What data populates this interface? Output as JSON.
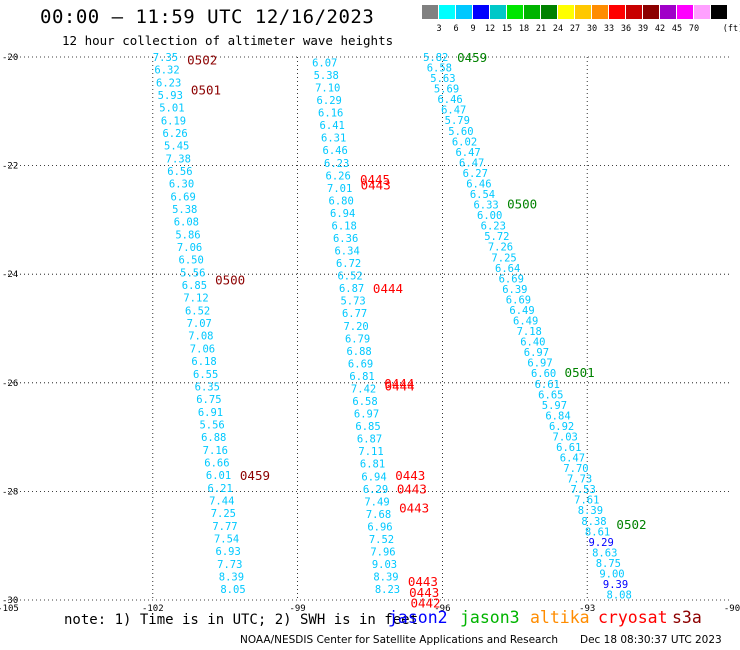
{
  "title": "00:00 – 11:59 UTC 12/16/2023",
  "subtitle": "12 hour collection of altimeter wave heights",
  "colorbar": {
    "unit": "(ft)",
    "steps": [
      {
        "label": "",
        "color": "#808080"
      },
      {
        "label": "3",
        "color": "#00ffff"
      },
      {
        "label": "6",
        "color": "#00c8ff"
      },
      {
        "label": "9",
        "color": "#0000ff"
      },
      {
        "label": "12",
        "color": "#00c8c8"
      },
      {
        "label": "15",
        "color": "#00e600"
      },
      {
        "label": "18",
        "color": "#00b400"
      },
      {
        "label": "21",
        "color": "#008200"
      },
      {
        "label": "24",
        "color": "#ffff00"
      },
      {
        "label": "27",
        "color": "#ffc800"
      },
      {
        "label": "30",
        "color": "#ff8c00"
      },
      {
        "label": "33",
        "color": "#ff0000"
      },
      {
        "label": "36",
        "color": "#c80000"
      },
      {
        "label": "39",
        "color": "#8c0000"
      },
      {
        "label": "42",
        "color": "#a000c8"
      },
      {
        "label": "45",
        "color": "#ff00ff"
      },
      {
        "label": "70",
        "color": "#ffa0ff"
      },
      {
        "label": "",
        "color": "#000000"
      }
    ]
  },
  "axes": {
    "x_ticks": [
      -105,
      -102,
      -99,
      -96,
      -93,
      -90
    ],
    "y_ticks": [
      -20,
      -22,
      -24,
      -26,
      -28,
      -30
    ],
    "xlim": [
      -105,
      -90
    ],
    "ylim": [
      -30,
      -20
    ]
  },
  "tracks": [
    {
      "id": "track-a",
      "lon_start": -102.0,
      "lat_start": -20.0,
      "lon_end": -100.6,
      "lat_end": -29.8,
      "values": [
        "7.35",
        "6.32",
        "6.23",
        "5.93",
        "5.01",
        "6.19",
        "6.26",
        "5.45",
        "7.38",
        "6.56",
        "6.30",
        "6.69",
        "5.38",
        "6.08",
        "5.86",
        "7.06",
        "6.50",
        "5.56",
        "6.85",
        "7.12",
        "6.52",
        "7.07",
        "7.08",
        "7.06",
        "6.18",
        "6.55",
        "6.35",
        "6.75",
        "6.91",
        "5.56",
        "6.88",
        "7.16",
        "6.66",
        "6.01",
        "6.21",
        "7.44",
        "7.25",
        "7.77",
        "7.54",
        "6.93",
        "7.73",
        "8.39",
        "8.05"
      ],
      "colors": [
        "#00c8ff"
      ],
      "times": [
        {
          "text": "0502",
          "lat": -20.05,
          "color": "#8c0000"
        },
        {
          "text": "0501",
          "lat": -20.6,
          "color": "#8c0000"
        },
        {
          "text": "0500",
          "lat": -24.1,
          "color": "#8c0000"
        },
        {
          "text": "0459",
          "lat": -27.7,
          "color": "#8c0000"
        }
      ]
    },
    {
      "id": "track-b",
      "lon_start": -98.7,
      "lat_start": -20.1,
      "lon_end": -97.4,
      "lat_end": -29.8,
      "values": [
        "6.07",
        "5.38",
        "7.10",
        "6.29",
        "6.16",
        "6.41",
        "6.31",
        "6.46",
        "6.23",
        "6.26",
        "7.01",
        "6.80",
        "6.94",
        "6.18",
        "6.36",
        "6.34",
        "6.72",
        "6.52",
        "6.87",
        "5.73",
        "6.77",
        "7.20",
        "6.79",
        "6.88",
        "6.69",
        "6.81",
        "7.42",
        "6.58",
        "6.97",
        "6.85",
        "6.87",
        "7.11",
        "6.81",
        "6.94",
        "6.29",
        "7.49",
        "7.68",
        "6.96",
        "7.52",
        "7.96",
        "9.03",
        "8.39",
        "8.23"
      ],
      "colors": [
        "#00c8ff"
      ],
      "times": [
        {
          "text": "0445",
          "lat": -22.25,
          "color": "#ff0000"
        },
        {
          "text": "0443",
          "lat": -22.35,
          "color": "#ff0000"
        },
        {
          "text": "0444",
          "lat": -24.25,
          "color": "#ff0000"
        },
        {
          "text": "0444",
          "lat": -26.0,
          "color": "#ff0000"
        },
        {
          "text": "0444",
          "lat": -26.05,
          "color": "#ff0000"
        },
        {
          "text": "0443",
          "lat": -27.7,
          "color": "#ff0000"
        },
        {
          "text": "0443",
          "lat": -27.95,
          "color": "#ff0000"
        },
        {
          "text": "0443",
          "lat": -28.3,
          "color": "#ff0000"
        },
        {
          "text": "0443",
          "lat": -29.65,
          "color": "#ff0000"
        },
        {
          "text": "0443",
          "lat": -29.85,
          "color": "#ff0000"
        },
        {
          "text": "0442",
          "lat": -30.05,
          "color": "#ff0000"
        }
      ]
    },
    {
      "id": "track-c",
      "lon_start": -96.4,
      "lat_start": -20.0,
      "lon_end": -92.6,
      "lat_end": -29.9,
      "values": [
        "5.82",
        "6.58",
        "5.63",
        "5.69",
        "6.46",
        "6.47",
        "5.79",
        "5.60",
        "6.02",
        "6.47",
        "6.47",
        "6.27",
        "6.46",
        "6.54",
        "6.33",
        "6.00",
        "6.23",
        "5.72",
        "7.26",
        "7.25",
        "6.64",
        "6.69",
        "6.39",
        "6.69",
        "6.49",
        "6.49",
        "7.18",
        "6.40",
        "6.97",
        "6.97",
        "6.60",
        "6.61",
        "6.65",
        "5.97",
        "6.84",
        "6.92",
        "7.03",
        "6.61",
        "6.47",
        "7.70",
        "7.73",
        "7.53",
        "7.61",
        "8.39",
        "8.38",
        "8.61",
        "9.29",
        "8.63",
        "8.75",
        "9.00",
        "9.39",
        "8.08"
      ],
      "colors": [
        "#00c8ff"
      ],
      "blue_indices": [
        46,
        50
      ],
      "times": [
        {
          "text": "0459",
          "lat": -20.0,
          "color": "#008200"
        },
        {
          "text": "0500",
          "lat": -22.7,
          "color": "#008200"
        },
        {
          "text": "0501",
          "lat": -25.8,
          "color": "#008200"
        },
        {
          "text": "0502",
          "lat": -28.6,
          "color": "#008200"
        }
      ]
    }
  ],
  "footer": {
    "note": "note:  1)  Time is in UTC;  2)  SWH is in feet",
    "satellites": [
      {
        "name": "jason2",
        "color": "#0000ff"
      },
      {
        "name": "jason3",
        "color": "#00b400"
      },
      {
        "name": "altika",
        "color": "#ff8c00"
      },
      {
        "name": "cryosat",
        "color": "#ff0000"
      },
      {
        "name": "s3a",
        "color": "#8c0000"
      }
    ],
    "credit": "NOAA/NESDIS Center for Satellite Applications and Research",
    "stamp": "Dec 18 08:30:37 UTC 2023"
  }
}
